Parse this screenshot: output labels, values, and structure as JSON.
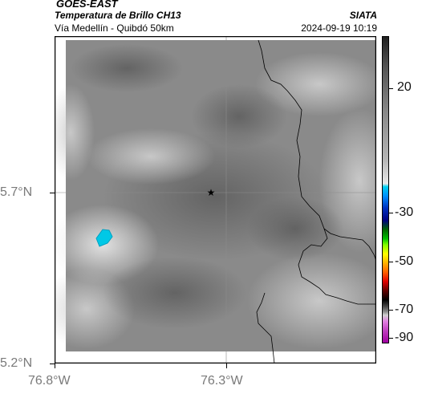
{
  "header": {
    "satellite": "GOES-EAST",
    "product": "Temperatura de Brillo CH13",
    "organization": "SIATA",
    "region": "Vía Medellín - Quibdó 50km",
    "timestamp": "2024-09-19 10:19"
  },
  "map": {
    "lat_labels": [
      "5.7°N",
      "5.2°N"
    ],
    "lon_labels": [
      "76.8°W",
      "76.3°W"
    ],
    "marker": "star-icon"
  },
  "colorbar": {
    "ticks": [
      "20",
      "-30",
      "-50",
      "-70",
      "-90"
    ]
  },
  "colors": {
    "cloud_cold": "#00c8e6",
    "border": "#000000",
    "grid": "#8c8c8c"
  }
}
